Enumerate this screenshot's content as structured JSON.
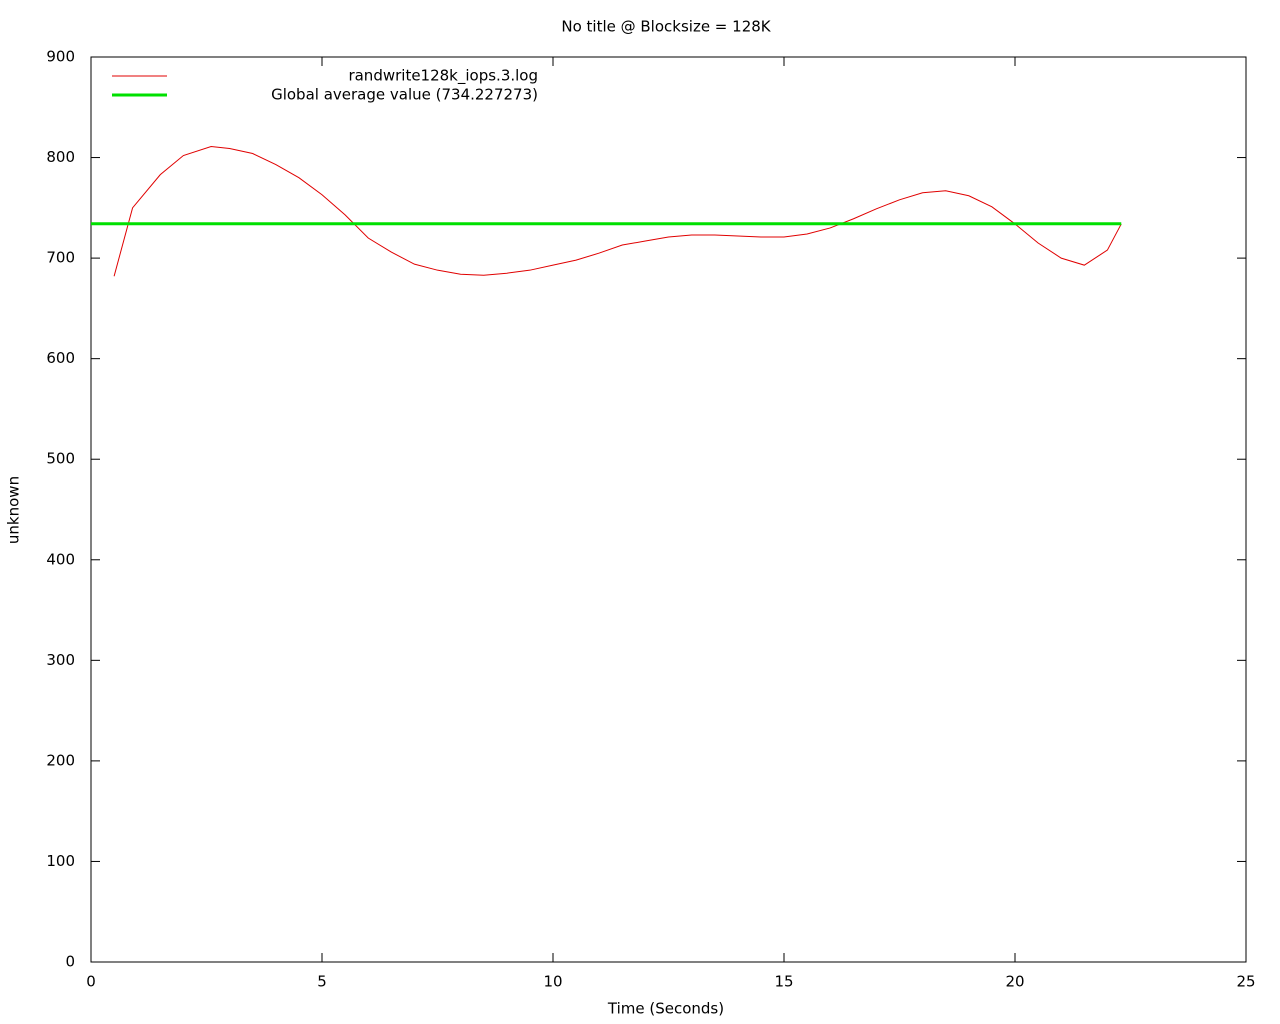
{
  "chart_data": {
    "type": "line",
    "title": "No title @ Blocksize = 128K",
    "x_label": "Time (Seconds)",
    "y_label": "unknown",
    "xlim": [
      0,
      25
    ],
    "xticks": [
      0,
      5,
      10,
      15,
      20,
      25
    ],
    "ylim": [
      0,
      900
    ],
    "yticks": [
      0,
      100,
      200,
      300,
      400,
      500,
      600,
      700,
      800,
      900
    ],
    "legend": "top-left",
    "series": [
      {
        "name": "randwrite128k_iops.3.log",
        "color": "#e00000",
        "width": 1,
        "x": [
          0.5,
          0.9,
          1.5,
          2,
          2.6,
          3,
          3.5,
          4,
          4.5,
          5,
          5.5,
          6,
          6.5,
          7,
          7.5,
          8,
          8.5,
          9,
          9.5,
          10,
          10.5,
          11,
          11.5,
          12,
          12.5,
          13,
          13.5,
          14,
          14.5,
          15,
          15.5,
          16,
          16.5,
          17,
          17.5,
          18,
          18.5,
          19,
          19.5,
          20,
          20.5,
          21,
          21.5,
          22,
          22.3
        ],
        "values": [
          682,
          750,
          783,
          802,
          811,
          809,
          804,
          793,
          780,
          763,
          743,
          720,
          706,
          694,
          688,
          684,
          683,
          685,
          688,
          693,
          698,
          705,
          713,
          717,
          721,
          723,
          723,
          722,
          721,
          721,
          724,
          730,
          739,
          749,
          758,
          765,
          767,
          762,
          751,
          734,
          715,
          700,
          693,
          708,
          734
        ]
      },
      {
        "name": "Global average value (734.227273)",
        "color": "#00e000",
        "width": 3,
        "x": [
          0,
          22.3
        ],
        "values": [
          734.227273,
          734.227273
        ]
      }
    ]
  }
}
